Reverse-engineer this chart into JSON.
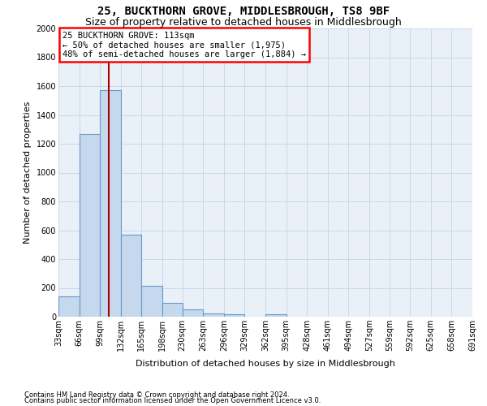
{
  "title": "25, BUCKTHORN GROVE, MIDDLESBROUGH, TS8 9BF",
  "subtitle": "Size of property relative to detached houses in Middlesbrough",
  "xlabel": "Distribution of detached houses by size in Middlesbrough",
  "ylabel": "Number of detached properties",
  "footnote1": "Contains HM Land Registry data © Crown copyright and database right 2024.",
  "footnote2": "Contains public sector information licensed under the Open Government Licence v3.0.",
  "annotation_title": "25 BUCKTHORN GROVE: 113sqm",
  "annotation_line1": "← 50% of detached houses are smaller (1,975)",
  "annotation_line2": "48% of semi-detached houses are larger (1,884) →",
  "property_size": 113,
  "bar_color": "#c5d8ed",
  "bar_edge_color": "#6699cc",
  "red_line_color": "#aa0000",
  "grid_color": "#c8d8e8",
  "background_color": "#ffffff",
  "plot_bg_color": "#eaf0f8",
  "bins": [
    33,
    66,
    99,
    132,
    165,
    198,
    230,
    263,
    296,
    329,
    362,
    395,
    428,
    461,
    494,
    527,
    559,
    592,
    625,
    658,
    691
  ],
  "counts": [
    140,
    1265,
    1570,
    570,
    215,
    95,
    50,
    20,
    15,
    0,
    15,
    0,
    0,
    0,
    0,
    0,
    0,
    0,
    0,
    0
  ],
  "ylim": [
    0,
    2000
  ],
  "yticks": [
    0,
    200,
    400,
    600,
    800,
    1000,
    1200,
    1400,
    1600,
    1800,
    2000
  ],
  "title_fontsize": 10,
  "subtitle_fontsize": 9,
  "tick_fontsize": 7,
  "ylabel_fontsize": 8,
  "xlabel_fontsize": 8,
  "footnote_fontsize": 6
}
